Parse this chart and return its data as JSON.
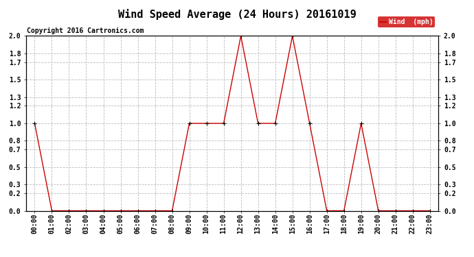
{
  "title": "Wind Speed Average (24 Hours) 20161019",
  "copyright": "Copyright 2016 Cartronics.com",
  "legend_label": "Wind  (mph)",
  "x_labels": [
    "00:00",
    "01:00",
    "02:00",
    "03:00",
    "04:00",
    "05:00",
    "06:00",
    "07:00",
    "08:00",
    "09:00",
    "10:00",
    "11:00",
    "12:00",
    "13:00",
    "14:00",
    "15:00",
    "16:00",
    "17:00",
    "18:00",
    "19:00",
    "20:00",
    "21:00",
    "22:00",
    "23:00"
  ],
  "y_values": [
    1.0,
    0.0,
    0.0,
    0.0,
    0.0,
    0.0,
    0.0,
    0.0,
    0.0,
    1.0,
    1.0,
    1.0,
    2.0,
    1.0,
    1.0,
    2.0,
    1.0,
    0.0,
    0.0,
    1.0,
    0.0,
    0.0,
    0.0,
    0.0
  ],
  "line_color": "#cc0000",
  "marker_color": "#000000",
  "bg_color": "#ffffff",
  "grid_color": "#bbbbbb",
  "title_fontsize": 11,
  "copyright_fontsize": 7,
  "ylim_min": 0.0,
  "ylim_max": 2.0,
  "yticks": [
    0.0,
    0.2,
    0.3,
    0.5,
    0.7,
    0.8,
    1.0,
    1.2,
    1.3,
    1.5,
    1.7,
    1.8,
    2.0
  ],
  "legend_bg": "#cc0000",
  "legend_text_color": "#ffffff",
  "tick_fontsize": 7
}
